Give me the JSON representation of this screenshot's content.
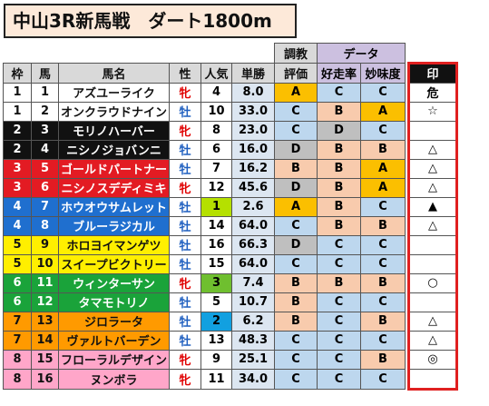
{
  "title": "中山3R新馬戦　ダート1800m",
  "header": {
    "group_training": "調教",
    "group_data": "データ",
    "waku": "枠",
    "uma": "馬",
    "name": "馬名",
    "sex": "性",
    "pop": "人気",
    "odds": "単勝",
    "train": "評価",
    "good": "好走率",
    "interest": "妙味度",
    "mark": "印"
  },
  "colors": {
    "waku1": "#ffffff",
    "waku2": "#111111",
    "waku3": "#e31b23",
    "waku4": "#1f6fcf",
    "waku5": "#ffef00",
    "waku6": "#1aa33a",
    "waku7": "#ff9a00",
    "waku8": "#ffa6c9",
    "grade_A": "#fbbf00",
    "grade_B": "#f8cbad",
    "grade_C": "#bdd7ee",
    "grade_D": "#bfbfbf",
    "sex_female": "#e00000",
    "sex_male": "#2060c0",
    "pop1": "#b5e000",
    "pop2": "#12a0e0",
    "pop3": "#6fbf2f"
  },
  "rows": [
    {
      "waku": "1",
      "uma": "1",
      "name": "アズユーライク",
      "sex": "牝",
      "pop": "4",
      "odds": "8.0",
      "train": "A",
      "good": "C",
      "interest": "C",
      "mark": "危"
    },
    {
      "waku": "1",
      "uma": "2",
      "name": "オンクラウドナイン",
      "sex": "牡",
      "pop": "10",
      "odds": "33.0",
      "train": "C",
      "good": "B",
      "interest": "A",
      "mark": "☆"
    },
    {
      "waku": "2",
      "uma": "3",
      "name": "モリノハーバー",
      "sex": "牝",
      "pop": "8",
      "odds": "23.0",
      "train": "C",
      "good": "D",
      "interest": "C",
      "mark": ""
    },
    {
      "waku": "2",
      "uma": "4",
      "name": "ニシノジョバンニ",
      "sex": "牡",
      "pop": "6",
      "odds": "16.0",
      "train": "D",
      "good": "B",
      "interest": "B",
      "mark": "△"
    },
    {
      "waku": "3",
      "uma": "5",
      "name": "ゴールドパートナー",
      "sex": "牡",
      "pop": "7",
      "odds": "16.2",
      "train": "B",
      "good": "B",
      "interest": "A",
      "mark": "△"
    },
    {
      "waku": "3",
      "uma": "6",
      "name": "ニシノスデディミキ",
      "sex": "牝",
      "pop": "12",
      "odds": "45.6",
      "train": "D",
      "good": "B",
      "interest": "A",
      "mark": "△"
    },
    {
      "waku": "4",
      "uma": "7",
      "name": "ホウオウサムレット",
      "sex": "牡",
      "pop": "1",
      "odds": "2.6",
      "train": "A",
      "good": "B",
      "interest": "C",
      "mark": "▲"
    },
    {
      "waku": "4",
      "uma": "8",
      "name": "ブルーラジカル",
      "sex": "牡",
      "pop": "14",
      "odds": "64.0",
      "train": "C",
      "good": "B",
      "interest": "B",
      "mark": "△"
    },
    {
      "waku": "5",
      "uma": "9",
      "name": "ホロヨイマンゲツ",
      "sex": "牡",
      "pop": "16",
      "odds": "66.3",
      "train": "D",
      "good": "C",
      "interest": "C",
      "mark": ""
    },
    {
      "waku": "5",
      "uma": "10",
      "name": "スイープビクトリー",
      "sex": "牡",
      "pop": "15",
      "odds": "64.0",
      "train": "C",
      "good": "C",
      "interest": "C",
      "mark": ""
    },
    {
      "waku": "6",
      "uma": "11",
      "name": "ウィンターサン",
      "sex": "牝",
      "pop": "3",
      "odds": "7.4",
      "train": "B",
      "good": "B",
      "interest": "B",
      "mark": "○"
    },
    {
      "waku": "6",
      "uma": "12",
      "name": "タマモトリノ",
      "sex": "牡",
      "pop": "5",
      "odds": "10.7",
      "train": "B",
      "good": "C",
      "interest": "C",
      "mark": ""
    },
    {
      "waku": "7",
      "uma": "13",
      "name": "ジロラータ",
      "sex": "牡",
      "pop": "2",
      "odds": "6.2",
      "train": "B",
      "good": "C",
      "interest": "B",
      "mark": "△"
    },
    {
      "waku": "7",
      "uma": "14",
      "name": "ヴァルトバーデン",
      "sex": "牡",
      "pop": "13",
      "odds": "48.3",
      "train": "C",
      "good": "C",
      "interest": "C",
      "mark": "△"
    },
    {
      "waku": "8",
      "uma": "15",
      "name": "フローラルデザイン",
      "sex": "牝",
      "pop": "9",
      "odds": "25.1",
      "train": "C",
      "good": "C",
      "interest": "B",
      "mark": "◎"
    },
    {
      "waku": "8",
      "uma": "16",
      "name": "ヌンボラ",
      "sex": "牝",
      "pop": "11",
      "odds": "34.0",
      "train": "C",
      "good": "C",
      "interest": "C",
      "mark": ""
    }
  ]
}
